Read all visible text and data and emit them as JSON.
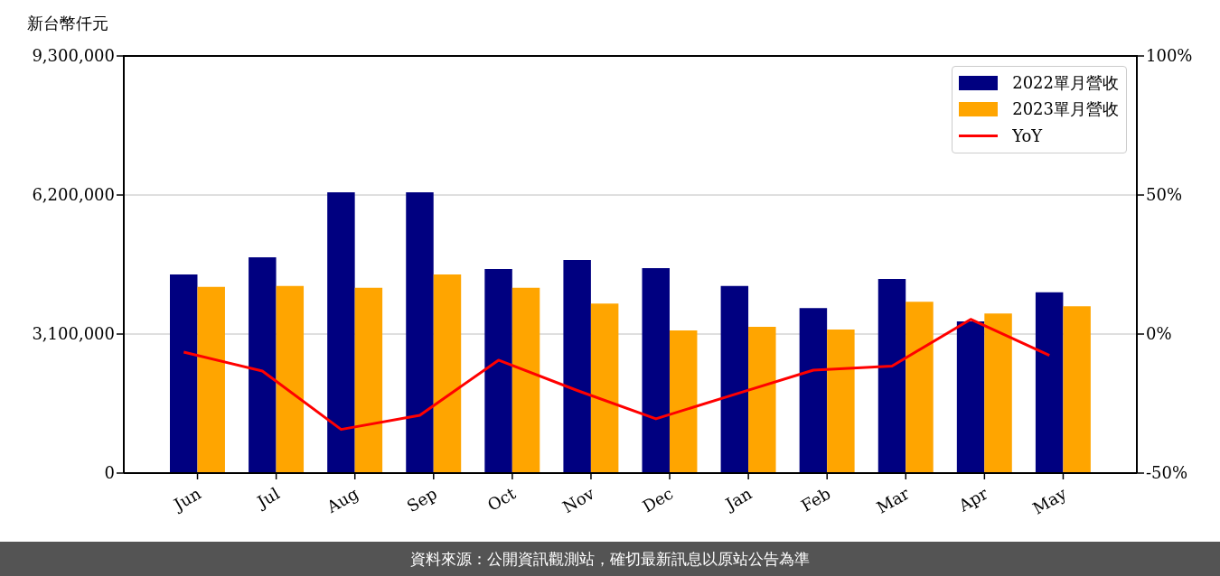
{
  "chart_data": {
    "type": "bar",
    "ylabel": "新台幣仟元",
    "categories": [
      "Jun",
      "Jul",
      "Aug",
      "Sep",
      "Oct",
      "Nov",
      "Dec",
      "Jan",
      "Feb",
      "Mar",
      "Apr",
      "May"
    ],
    "series": [
      {
        "name": "2022單月營收",
        "color": "#000080",
        "values": [
          4430000,
          4810000,
          6260000,
          6260000,
          4550000,
          4750000,
          4570000,
          4170000,
          3680000,
          4330000,
          3380000,
          4030000
        ]
      },
      {
        "name": "2023單月營收",
        "color": "#ffa500",
        "values": [
          4150000,
          4170000,
          4130000,
          4430000,
          4130000,
          3780000,
          3180000,
          3260000,
          3200000,
          3820000,
          3560000,
          3720000
        ]
      },
      {
        "name": "YoY",
        "type": "line",
        "axis": "y2",
        "color": "#ff0000",
        "values": [
          -6.5,
          -13.3,
          -34.3,
          -29.2,
          -9.4,
          -20.3,
          -30.5,
          -21.7,
          -13.0,
          -11.5,
          5.3,
          -7.7
        ]
      }
    ],
    "ylim": [
      0,
      9300000
    ],
    "yticks": [
      0,
      {
        "value": 3100000,
        "label": "3,100,000"
      },
      {
        "value": 6200000,
        "label": "6,200,000"
      },
      {
        "value": 9300000,
        "label": "9,300,000"
      }
    ],
    "y2lim": [
      -50,
      100
    ],
    "y2ticks": [
      {
        "value": -50,
        "label": "-50%"
      },
      {
        "value": 0,
        "label": "0%"
      },
      {
        "value": 50,
        "label": "50%"
      },
      {
        "value": 100,
        "label": "100%"
      }
    ],
    "grid": "y",
    "legend": "top right",
    "annotations": [
      "資料來源：公開資訊觀測站，確切最新訊息以原站公告為準"
    ]
  }
}
